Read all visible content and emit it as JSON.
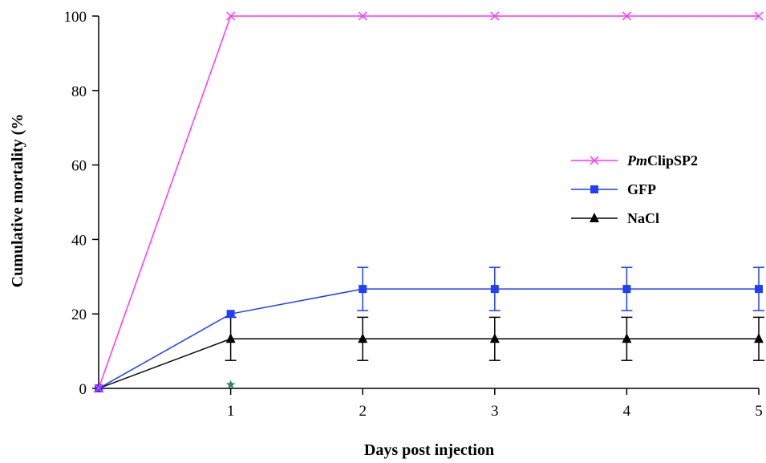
{
  "chart_data": {
    "type": "line",
    "xlabel": "Days post injection",
    "ylabel": "Cumulative mortality (%",
    "x": [
      0,
      1,
      2,
      3,
      4,
      5
    ],
    "x_ticks": [
      "1",
      "2",
      "3",
      "4",
      "5"
    ],
    "y_ticks": [
      "0",
      "20",
      "40",
      "60",
      "80",
      "100"
    ],
    "xlim": [
      0,
      5
    ],
    "ylim": [
      0,
      100
    ],
    "grid": false,
    "legend_position": "right",
    "series": [
      {
        "name": "ClipSP2",
        "name_prefix_italic": "Pm",
        "values": [
          0,
          100,
          100,
          100,
          100,
          100
        ],
        "errors": [
          0,
          0,
          0,
          0,
          0,
          0
        ],
        "color": "#ff33ff",
        "marker": "x-marker"
      },
      {
        "name": "GFP",
        "values": [
          0,
          20,
          26.7,
          26.7,
          26.7,
          26.7
        ],
        "errors": [
          0,
          0,
          5.8,
          5.8,
          5.8,
          5.8
        ],
        "color": "#1f3fff",
        "marker": "square-marker"
      },
      {
        "name": "NaCl",
        "values": [
          0,
          13.3,
          13.3,
          13.3,
          13.3,
          13.3
        ],
        "errors": [
          0,
          5.8,
          5.8,
          5.8,
          5.8,
          5.8
        ],
        "color": "#000000",
        "marker": "triangle-marker"
      }
    ],
    "annotations": [
      {
        "x": 1,
        "y": 1,
        "marker": "star-marker",
        "color": "#2e8b57"
      }
    ]
  }
}
